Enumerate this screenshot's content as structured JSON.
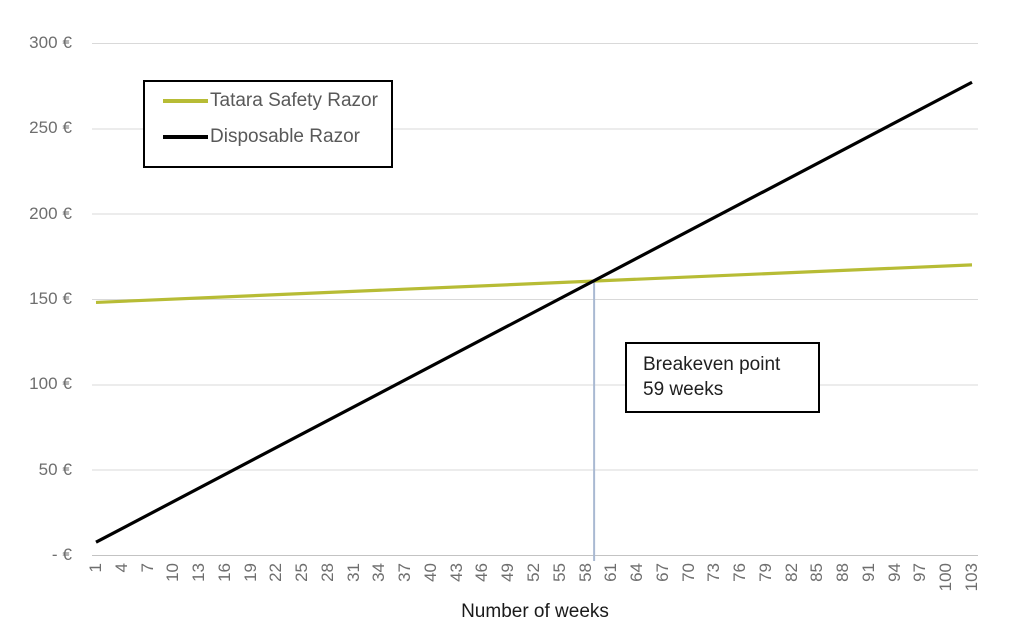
{
  "chart_data": {
    "type": "line",
    "title": "",
    "xlabel": "Number of weeks",
    "ylabel": "",
    "xlim": [
      1,
      103
    ],
    "ylim": [
      0,
      300
    ],
    "grid": "horizontal",
    "legend_position": "top-left-inside",
    "currency": "€",
    "x_ticks": [
      1,
      4,
      7,
      10,
      13,
      16,
      19,
      22,
      25,
      28,
      31,
      34,
      37,
      40,
      43,
      46,
      49,
      52,
      55,
      58,
      61,
      64,
      67,
      70,
      73,
      76,
      79,
      82,
      85,
      88,
      91,
      94,
      97,
      100,
      103
    ],
    "y_ticks": [
      {
        "value": 300,
        "num": "300",
        "suffix": "€"
      },
      {
        "value": 250,
        "num": "250",
        "suffix": "€"
      },
      {
        "value": 200,
        "num": "200",
        "suffix": "€"
      },
      {
        "value": 150,
        "num": "150",
        "suffix": "€"
      },
      {
        "value": 100,
        "num": "100",
        "suffix": "€"
      },
      {
        "value": 50,
        "num": "50",
        "suffix": "€"
      },
      {
        "value": 0,
        "num": "-",
        "suffix": "€"
      }
    ],
    "series": [
      {
        "name": "Tatara Safety Razor",
        "color": "#b7bc35",
        "shape": "linear",
        "points": [
          {
            "x": 1,
            "y": 148
          },
          {
            "x": 103,
            "y": 170
          }
        ]
      },
      {
        "name": "Disposable Razor",
        "color": "#000000",
        "shape": "linear",
        "points": [
          {
            "x": 1,
            "y": 7.5
          },
          {
            "x": 103,
            "y": 277
          }
        ]
      }
    ],
    "breakeven": {
      "week": 59,
      "cost": 160.5,
      "marker_color": "#a9b9d2"
    },
    "annotation": {
      "line1": "Breakeven point",
      "line2": "59 weeks"
    },
    "colors": {
      "gridline": "#d9d9d9",
      "axis_line": "#c3c3c3",
      "tick_label": "#6e6e6e"
    }
  }
}
